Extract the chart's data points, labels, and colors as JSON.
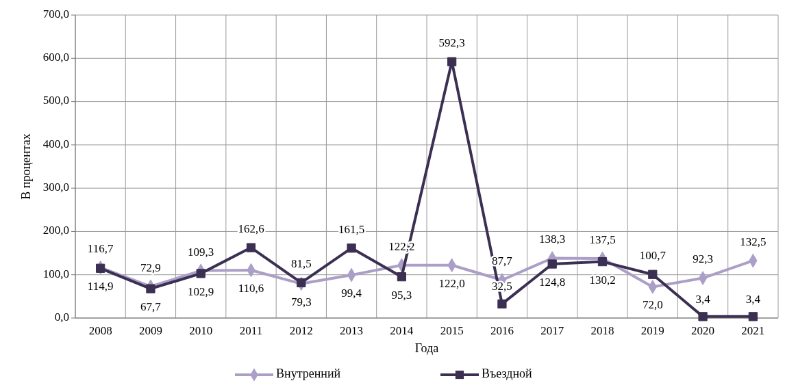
{
  "chart_data": {
    "type": "line",
    "xlabel": "Года",
    "ylabel": "В процентах",
    "categories": [
      "2008",
      "2009",
      "2010",
      "2011",
      "2012",
      "2013",
      "2014",
      "2015",
      "2016",
      "2017",
      "2018",
      "2019",
      "2020",
      "2021"
    ],
    "series": [
      {
        "name": "Внутренний",
        "color": "#ab9fc8",
        "marker": "diamond",
        "values": [
          116.7,
          72.9,
          109.3,
          110.6,
          79.3,
          99.4,
          122.2,
          122.0,
          87.7,
          138.3,
          137.5,
          72.0,
          92.3,
          132.5
        ],
        "value_labels": [
          "116,7",
          "72,9",
          "109,3",
          "110,6",
          "79,3",
          "99,4",
          "122,2",
          "122,0",
          "87,7",
          "138,3",
          "137,5",
          "72,0",
          "92,3",
          "132,5"
        ]
      },
      {
        "name": "Въездной",
        "color": "#3b2f52",
        "marker": "square",
        "values": [
          114.9,
          67.7,
          102.9,
          162.6,
          81.5,
          161.5,
          95.3,
          592.3,
          32.5,
          124.8,
          130.2,
          100.7,
          3.4,
          3.4
        ],
        "value_labels": [
          "114,9",
          "67,7",
          "102,9",
          "162,6",
          "81,5",
          "161,5",
          "95,3",
          "592,3",
          "32,5",
          "124,8",
          "130,2",
          "100,7",
          "3,4",
          "3,4"
        ]
      }
    ],
    "ylim": [
      0,
      700
    ],
    "yticks": [
      {
        "value": 0,
        "label": "0,0"
      },
      {
        "value": 100,
        "label": "100,0"
      },
      {
        "value": 200,
        "label": "200,0"
      },
      {
        "value": 300,
        "label": "300,0"
      },
      {
        "value": 400,
        "label": "400,0"
      },
      {
        "value": 500,
        "label": "500,0"
      },
      {
        "value": 600,
        "label": "600,0"
      },
      {
        "value": 700,
        "label": "700,0"
      }
    ],
    "grid": true,
    "legend": "bottom",
    "line_style": "solid"
  }
}
